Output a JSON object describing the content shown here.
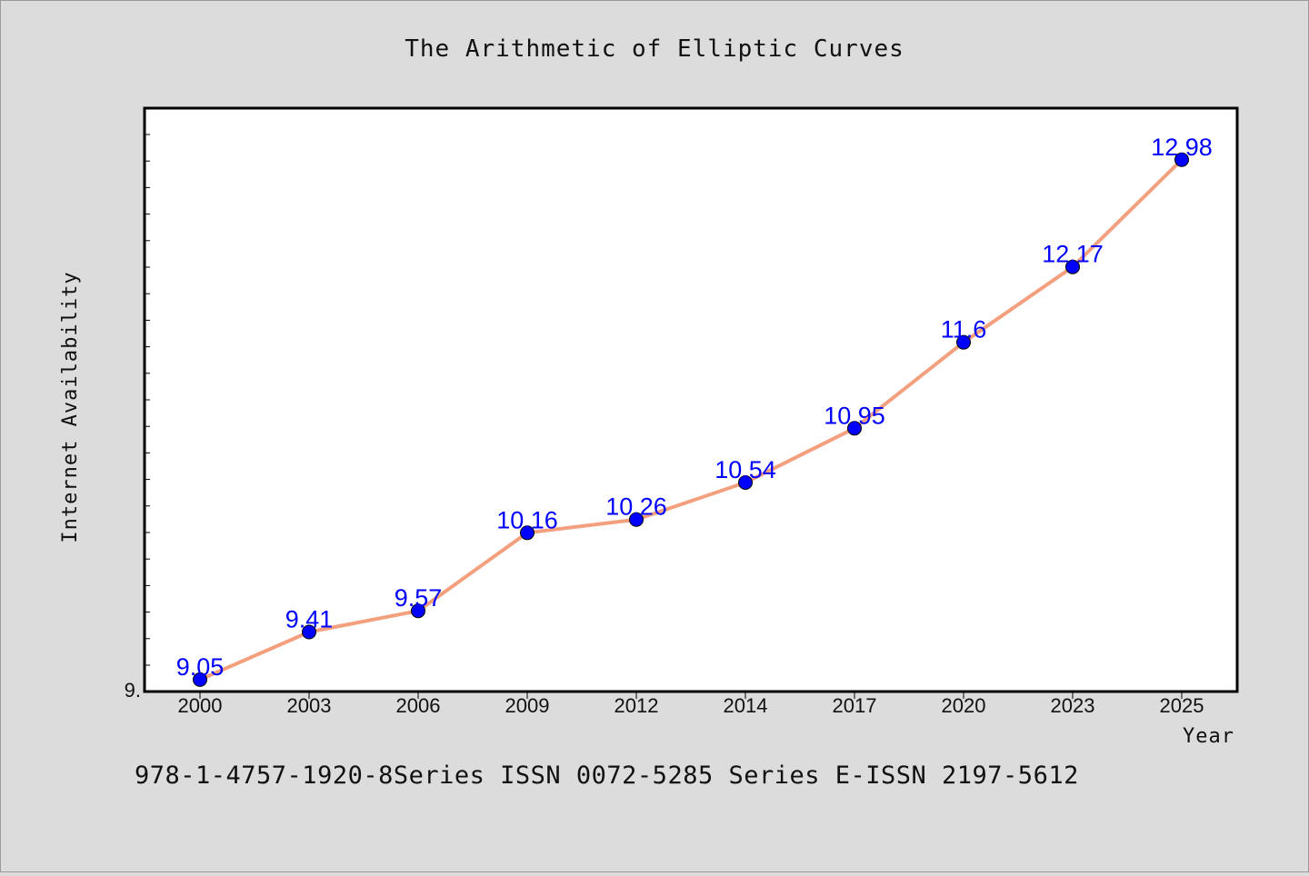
{
  "chart_data": {
    "type": "line",
    "title": "The Arithmetic of Elliptic Curves",
    "xlabel": "Year",
    "ylabel": "Internet Availability",
    "categories": [
      "2000",
      "2003",
      "2006",
      "2009",
      "2012",
      "2014",
      "2017",
      "2020",
      "2023",
      "2025"
    ],
    "series": [
      {
        "values": [
          9.05,
          9.41,
          9.57,
          10.16,
          10.26,
          10.54,
          10.95,
          11.6,
          12.17,
          12.98
        ],
        "labels": [
          "9.05",
          "9.41",
          "9.57",
          "10.16",
          "10.26",
          "10.54",
          "10.95",
          "11.6",
          "12.17",
          "12.98"
        ]
      }
    ],
    "ylim": [
      8.96,
      13.37
    ],
    "y_tick_labels": [
      "9."
    ],
    "grid": false,
    "legend": "none",
    "colors": {
      "line": "#f4a07e",
      "marker": "#0000ff",
      "label": "#0000ff"
    }
  },
  "footer_text": "978-1-4757-1920-8Series ISSN 0072-5285 Series E-ISSN 2197-5612"
}
